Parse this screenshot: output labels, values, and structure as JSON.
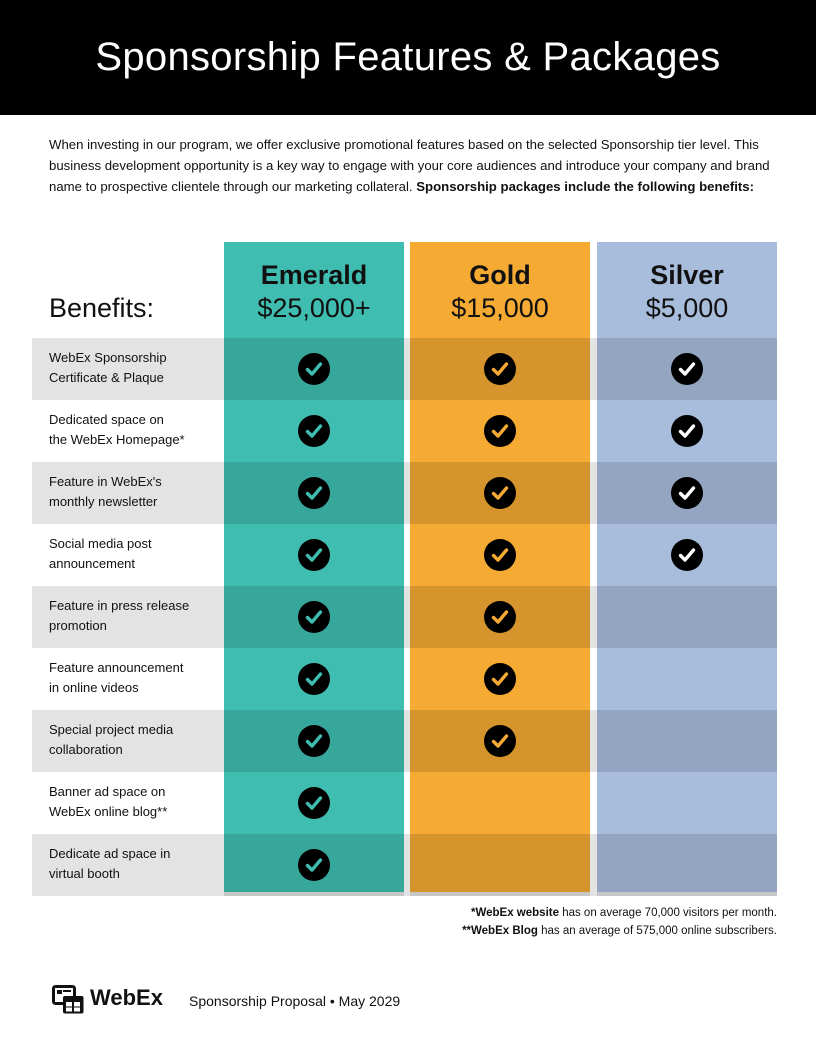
{
  "header": {
    "title": "Sponsorship Features & Packages"
  },
  "intro": {
    "text": "When investing in our program, we offer exclusive promotional features based on the selected Sponsorship tier level. This business development opportunity is a key way to engage with your core audiences and introduce your company and brand name to prospective clientele through our marketing collateral. ",
    "bold_text": "Sponsorship packages include the following benefits:"
  },
  "table": {
    "benefits_label": "Benefits:",
    "tiers": [
      {
        "name": "Emerald",
        "price": "$25,000+",
        "color": "#3fbdb1",
        "check_color": "#3fbdb1"
      },
      {
        "name": "Gold",
        "price": "$15,000",
        "color": "#f4aa33",
        "check_color": "#f4aa33"
      },
      {
        "name": "Silver",
        "price": "$5,000",
        "color": "#a8bcdc",
        "check_color": "#ffffff"
      }
    ],
    "rows": [
      {
        "line1": "WebEx Sponsorship",
        "line2": "Certificate & Plaque",
        "included": [
          true,
          true,
          true
        ]
      },
      {
        "line1": "Dedicated space on",
        "line2": "the WebEx Homepage*",
        "included": [
          true,
          true,
          true
        ]
      },
      {
        "line1": "Feature in WebEx's",
        "line2": "monthly newsletter",
        "included": [
          true,
          true,
          true
        ]
      },
      {
        "line1": "Social media post",
        "line2": "announcement",
        "included": [
          true,
          true,
          true
        ]
      },
      {
        "line1": "Feature in press release",
        "line2": "promotion",
        "included": [
          true,
          true,
          false
        ]
      },
      {
        "line1": "Feature announcement",
        "line2": "in online videos",
        "included": [
          true,
          true,
          false
        ]
      },
      {
        "line1": "Special project media",
        "line2": "collaboration",
        "included": [
          true,
          true,
          false
        ]
      },
      {
        "line1": "Banner ad space on",
        "line2": "WebEx online blog**",
        "included": [
          true,
          false,
          false
        ]
      },
      {
        "line1": "Dedicate ad space in",
        "line2": "virtual booth",
        "included": [
          true,
          false,
          false
        ]
      }
    ]
  },
  "footnotes": [
    {
      "bold": "*WebEx website",
      "text": " has on average 70,000 visitors per month."
    },
    {
      "bold": "**WebEx Blog",
      "text": " has an average of 575,000 online subscribers."
    }
  ],
  "footer": {
    "brand": "WebEx",
    "logo_icon": "webex-logo-icon",
    "text": "Sponsorship Proposal • May 2029"
  }
}
